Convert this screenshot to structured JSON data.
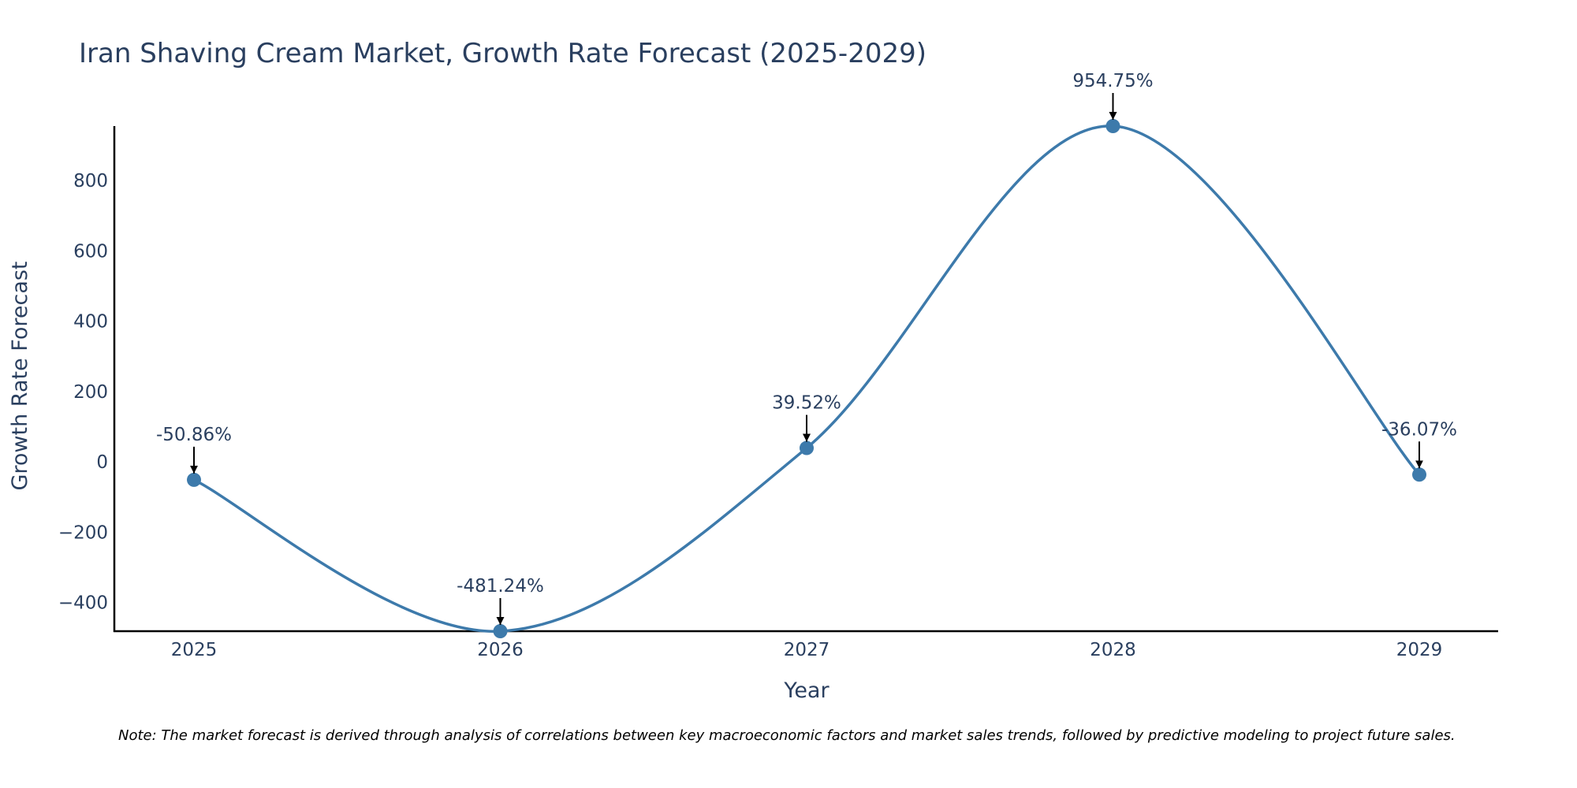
{
  "chart_data": {
    "type": "line",
    "title": "Iran Shaving Cream Market, Growth Rate Forecast (2025-2029)",
    "xlabel": "Year",
    "ylabel": "Growth Rate Forecast",
    "categories": [
      "2025",
      "2026",
      "2027",
      "2028",
      "2029"
    ],
    "series": [
      {
        "name": "Growth Rate Forecast",
        "values": [
          -50.86,
          -481.24,
          39.52,
          954.75,
          -36.07
        ],
        "labels": [
          "-50.86%",
          "-481.24%",
          "39.52%",
          "954.75%",
          "-36.07%"
        ]
      }
    ],
    "ylim": [
      -481.24,
      954.75
    ],
    "yticks": [
      -400,
      -200,
      0,
      200,
      400,
      600,
      800
    ],
    "ytick_labels": [
      "−400",
      "−200",
      "0",
      "200",
      "400",
      "600",
      "800"
    ],
    "line_shape": "spline",
    "grid": false,
    "line_color": "#3d7aab",
    "marker_color": "#3d7aab",
    "annotation_arrow_color": "#000000"
  },
  "note": "Note: The market forecast is derived through analysis of correlations between key macroeconomic factors and market sales trends, followed by predictive modeling to project future sales."
}
